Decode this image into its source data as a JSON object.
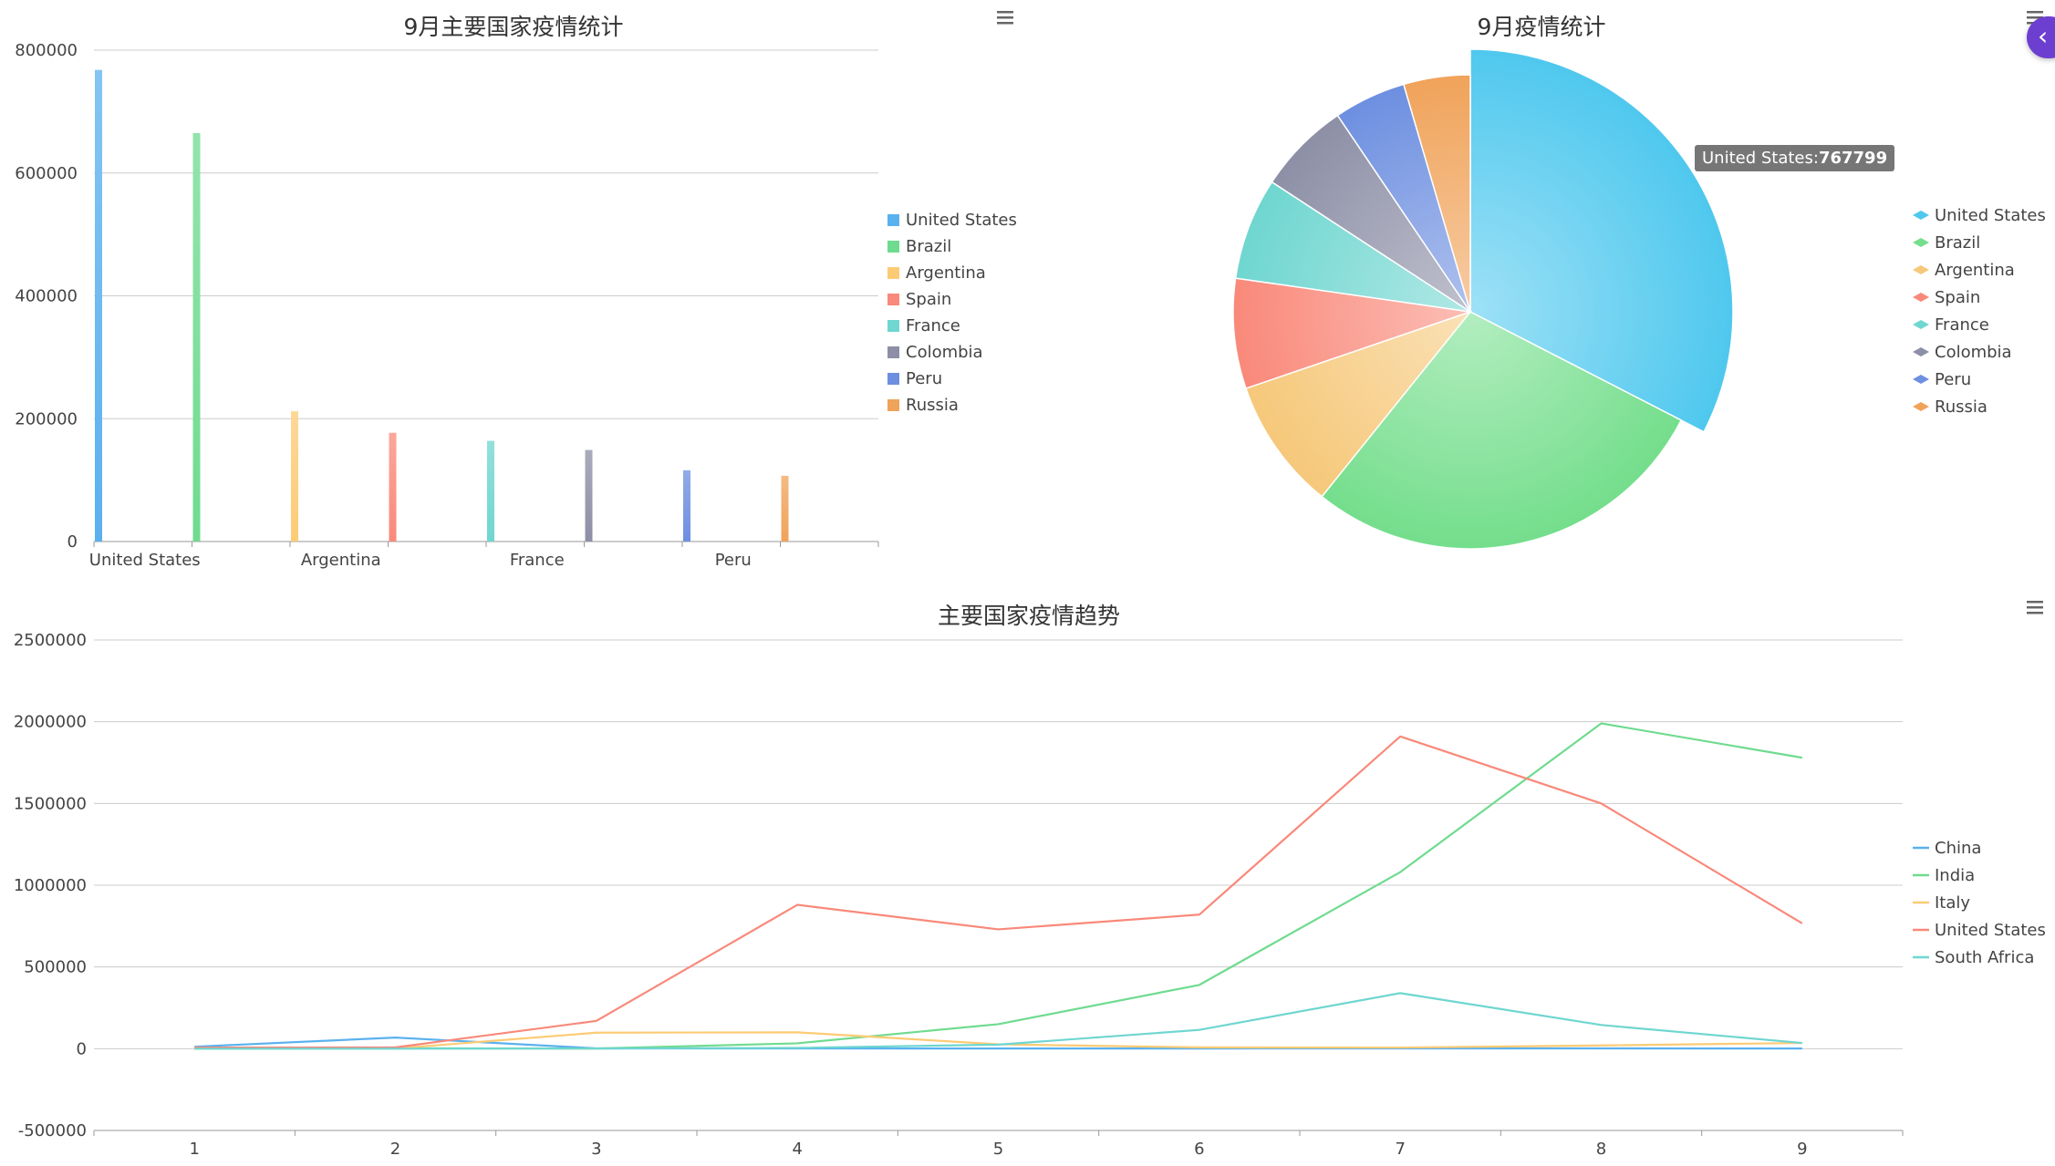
{
  "ui": {
    "menu_icon": "hamburger-menu-icon",
    "side_toggle_icon": "chevron-left-icon",
    "side_toggle_glyph": "‹",
    "tooltip": {
      "label": "United States:",
      "value": "767799"
    }
  },
  "chart_data": [
    {
      "type": "bar",
      "title": "9月主要国家疫情统计",
      "categories": [
        "United States",
        "Brazil",
        "Argentina",
        "Spain",
        "France",
        "Colombia",
        "Peru",
        "Russia"
      ],
      "x_tick_labels": [
        "United States",
        "Argentina",
        "France",
        "Peru"
      ],
      "values": [
        767799,
        665000,
        212000,
        177000,
        164000,
        149000,
        116000,
        107000
      ],
      "colors": [
        "#5ab1ef",
        "#6fdb8f",
        "#fccb75",
        "#f9897a",
        "#6fd6d0",
        "#8d8fa6",
        "#6d8fe0",
        "#f0a35a"
      ],
      "yticks": [
        0,
        200000,
        400000,
        600000,
        800000
      ],
      "ylim": [
        0,
        800000
      ],
      "grid": true,
      "legend_position": "right"
    },
    {
      "type": "pie",
      "title": "9月疫情统计",
      "labels": [
        "United States",
        "Brazil",
        "Argentina",
        "Spain",
        "France",
        "Colombia",
        "Peru",
        "Russia"
      ],
      "values": [
        767799,
        665000,
        212000,
        177000,
        164000,
        149000,
        116000,
        107000
      ],
      "colors": [
        "#4fc8ee",
        "#74de8c",
        "#f6c87a",
        "#f9897a",
        "#6fd6d0",
        "#8d8fa6",
        "#6d8fe0",
        "#f0a35a"
      ],
      "highlighted": "United States",
      "legend_position": "right"
    },
    {
      "type": "line",
      "title": "主要国家疫情趋势",
      "x": [
        1,
        2,
        3,
        4,
        5,
        6,
        7,
        8,
        9
      ],
      "series": [
        {
          "name": "China",
          "color": "#5ab1ef",
          "values": [
            12000,
            68000,
            2000,
            2000,
            1000,
            1000,
            2000,
            2000,
            1000
          ]
        },
        {
          "name": "India",
          "color": "#6fdb8f",
          "values": [
            0,
            3000,
            1000,
            33000,
            150000,
            390000,
            1080000,
            1990000,
            1780000
          ]
        },
        {
          "name": "Italy",
          "color": "#fccb75",
          "values": [
            2000,
            1000,
            98000,
            100000,
            27000,
            8000,
            7000,
            20000,
            35000
          ]
        },
        {
          "name": "United States",
          "color": "#f9897a",
          "values": [
            7000,
            8000,
            170000,
            880000,
            730000,
            820000,
            1910000,
            1500000,
            767000
          ]
        },
        {
          "name": "South Africa",
          "color": "#6fd6d0",
          "values": [
            0,
            0,
            1000,
            5000,
            25000,
            115000,
            340000,
            145000,
            35000
          ]
        }
      ],
      "yticks": [
        -500000,
        0,
        500000,
        1000000,
        1500000,
        2000000,
        2500000
      ],
      "ylim": [
        -500000,
        2500000
      ],
      "grid": true,
      "legend_position": "right"
    }
  ]
}
